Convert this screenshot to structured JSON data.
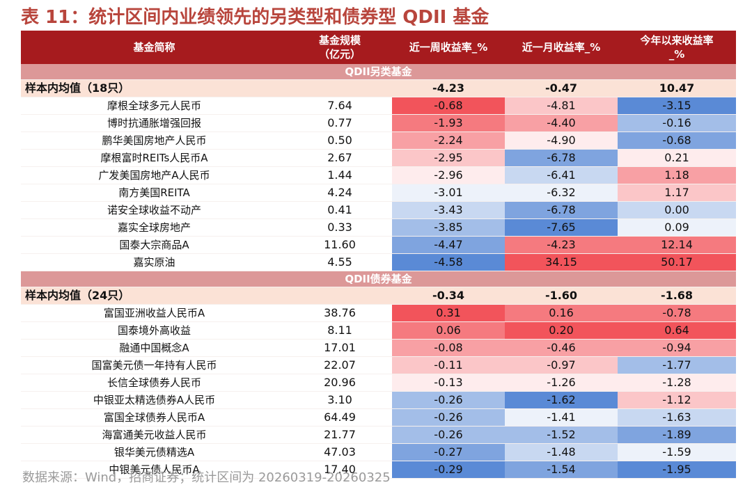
{
  "title": "表 11：统计区间内业绩领先的另类型和债券型 QDII 基金",
  "headers": [
    "基金简称",
    "基金规模\n（亿元）",
    "近一周收益率_%",
    "近一月收益率_%",
    "今年以来收益率\n_%"
  ],
  "sections": [
    {
      "label": "QDII另类基金",
      "avg": {
        "label": "样本内均值（18只）",
        "week": "-4.23",
        "month": "-0.47",
        "ytd": "10.47"
      },
      "rows": [
        {
          "name": "摩根全球多元人民币",
          "size": "7.64",
          "week": "-0.68",
          "month": "-4.81",
          "ytd": "-3.15"
        },
        {
          "name": "博时抗通胀增强回报",
          "size": "0.77",
          "week": "-1.93",
          "month": "-4.40",
          "ytd": "-0.16"
        },
        {
          "name": "鹏华美国房地产人民币",
          "size": "0.50",
          "week": "-2.24",
          "month": "-4.90",
          "ytd": "-0.68"
        },
        {
          "name": "摩根富时REITs人民币A",
          "size": "2.67",
          "week": "-2.95",
          "month": "-6.78",
          "ytd": "0.21"
        },
        {
          "name": "广发美国房地产A人民币",
          "size": "1.44",
          "week": "-2.96",
          "month": "-6.41",
          "ytd": "1.18"
        },
        {
          "name": "南方美国REITA",
          "size": "4.24",
          "week": "-3.01",
          "month": "-6.32",
          "ytd": "1.17"
        },
        {
          "name": "诺安全球收益不动产",
          "size": "0.41",
          "week": "-3.43",
          "month": "-6.78",
          "ytd": "0.00"
        },
        {
          "name": "嘉实全球房地产",
          "size": "0.33",
          "week": "-3.85",
          "month": "-7.65",
          "ytd": "0.09"
        },
        {
          "name": "国泰大宗商品A",
          "size": "11.60",
          "week": "-4.47",
          "month": "-4.23",
          "ytd": "12.14"
        },
        {
          "name": "嘉实原油",
          "size": "4.55",
          "week": "-4.58",
          "month": "34.15",
          "ytd": "50.17"
        }
      ]
    },
    {
      "label": "QDII债券基金",
      "avg": {
        "label": "样本内均值（24只）",
        "week": "-0.34",
        "month": "-1.60",
        "ytd": "-1.68"
      },
      "rows": [
        {
          "name": "富国亚洲收益人民币A",
          "size": "38.76",
          "week": "0.31",
          "month": "0.16",
          "ytd": "-0.78"
        },
        {
          "name": "国泰境外高收益",
          "size": "8.11",
          "week": "0.06",
          "month": "0.20",
          "ytd": "0.64"
        },
        {
          "name": "融通中国概念A",
          "size": "17.01",
          "week": "-0.08",
          "month": "-0.46",
          "ytd": "-0.94"
        },
        {
          "name": "国富美元债一年持有人民币",
          "size": "22.07",
          "week": "-0.11",
          "month": "-0.97",
          "ytd": "-1.77"
        },
        {
          "name": "长信全球债券人民币",
          "size": "20.96",
          "week": "-0.13",
          "month": "-1.26",
          "ytd": "-1.28"
        },
        {
          "name": "中银亚太精选债券A人民币",
          "size": "3.10",
          "week": "-0.26",
          "month": "-1.62",
          "ytd": "-1.12"
        },
        {
          "name": "富国全球债券人民币A",
          "size": "64.49",
          "week": "-0.26",
          "month": "-1.41",
          "ytd": "-1.63"
        },
        {
          "name": "海富通美元收益人民币",
          "size": "21.77",
          "week": "-0.26",
          "month": "-1.52",
          "ytd": "-1.89"
        },
        {
          "name": "银华美元债精选A",
          "size": "47.03",
          "week": "-0.27",
          "month": "-1.48",
          "ytd": "-1.59"
        },
        {
          "name": "中银美元债人民币A",
          "size": "17.40",
          "week": "-0.29",
          "month": "-1.54",
          "ytd": "-1.95"
        }
      ]
    }
  ],
  "colors": {
    "header_bg": "#a61b1e",
    "section_bg": "#dc9898",
    "avg_bg": "#fbe2d6",
    "title": "#b8453c",
    "heat_red": "#f2545b",
    "heat_white": "#ffffff",
    "heat_blue": "#5a8ad6"
  },
  "source": "数据来源：Wind，招商证券；统计区间为 20260319-20260325"
}
